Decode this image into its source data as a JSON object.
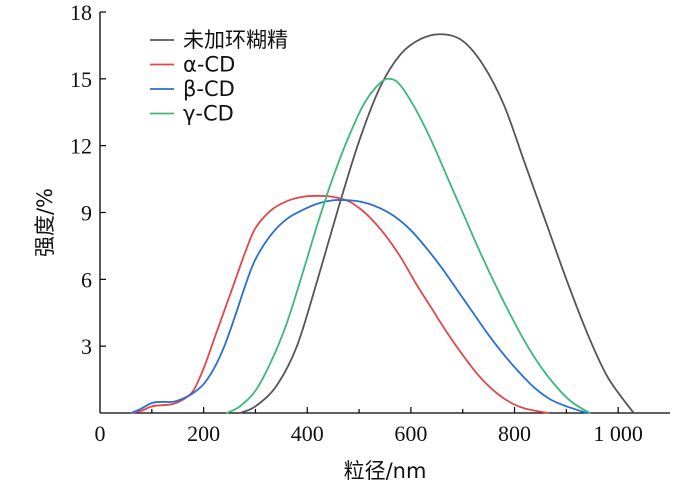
{
  "chart_data": {
    "type": "line",
    "xlabel": "粒径/nm",
    "ylabel": "强度/%",
    "xlim": [
      0,
      1100
    ],
    "ylim": [
      0,
      18
    ],
    "x_ticks": [
      0,
      200,
      400,
      600,
      800,
      1000
    ],
    "x_tick_labels": [
      "0",
      "200",
      "400",
      "600",
      "800",
      "1 000"
    ],
    "y_ticks": [
      3,
      6,
      9,
      12,
      15,
      18
    ],
    "y_tick_labels": [
      "3",
      "6",
      "9",
      "12",
      "15",
      "18"
    ],
    "grid": false,
    "legend_position": "top-left",
    "series": [
      {
        "name": "未加环糊精",
        "color": "#555555",
        "x": [
          270,
          300,
          340,
          380,
          420,
          460,
          500,
          540,
          580,
          620,
          660,
          700,
          740,
          780,
          820,
          860,
          900,
          940,
          980,
          1030
        ],
        "y": [
          0,
          0.3,
          1.2,
          3.0,
          6.0,
          9.2,
          12.2,
          14.6,
          16.1,
          16.8,
          17.0,
          16.7,
          15.6,
          13.8,
          11.2,
          8.6,
          6.0,
          3.6,
          1.6,
          0
        ]
      },
      {
        "name": "α-CD",
        "color": "#e0474c",
        "x": [
          60,
          80,
          100,
          120,
          140,
          160,
          180,
          200,
          220,
          240,
          260,
          280,
          300,
          330,
          360,
          390,
          420,
          450,
          480,
          500,
          520,
          550,
          580,
          610,
          640,
          670,
          700,
          730,
          760,
          790,
          820,
          865
        ],
        "y": [
          0,
          0.1,
          0.3,
          0.35,
          0.4,
          0.6,
          1.0,
          2.0,
          3.3,
          4.6,
          5.9,
          7.2,
          8.3,
          9.1,
          9.5,
          9.7,
          9.75,
          9.7,
          9.5,
          9.2,
          8.8,
          8.0,
          7.0,
          5.8,
          4.7,
          3.6,
          2.6,
          1.7,
          1.0,
          0.5,
          0.2,
          0
        ]
      },
      {
        "name": "β-CD",
        "color": "#2a6fcf",
        "x": [
          60,
          80,
          100,
          120,
          140,
          160,
          180,
          200,
          220,
          240,
          260,
          280,
          300,
          330,
          360,
          390,
          420,
          450,
          480,
          510,
          540,
          570,
          600,
          630,
          660,
          690,
          720,
          750,
          780,
          810,
          840,
          870,
          900,
          940
        ],
        "y": [
          0,
          0.2,
          0.45,
          0.5,
          0.5,
          0.65,
          0.9,
          1.3,
          2.0,
          3.0,
          4.3,
          5.7,
          6.9,
          8.0,
          8.7,
          9.1,
          9.4,
          9.55,
          9.55,
          9.45,
          9.2,
          8.8,
          8.2,
          7.4,
          6.5,
          5.5,
          4.5,
          3.5,
          2.6,
          1.8,
          1.1,
          0.6,
          0.3,
          0
        ]
      },
      {
        "name": "γ-CD",
        "color": "#3db879",
        "x": [
          245,
          270,
          300,
          330,
          360,
          390,
          420,
          450,
          480,
          510,
          540,
          560,
          580,
          610,
          640,
          670,
          700,
          730,
          760,
          790,
          820,
          850,
          880,
          910,
          945
        ],
        "y": [
          0,
          0.3,
          1.0,
          2.3,
          4.0,
          6.2,
          8.5,
          10.6,
          12.4,
          13.9,
          14.8,
          15.0,
          14.7,
          13.6,
          12.2,
          10.6,
          9.0,
          7.4,
          5.9,
          4.5,
          3.2,
          2.1,
          1.2,
          0.5,
          0
        ]
      }
    ]
  }
}
